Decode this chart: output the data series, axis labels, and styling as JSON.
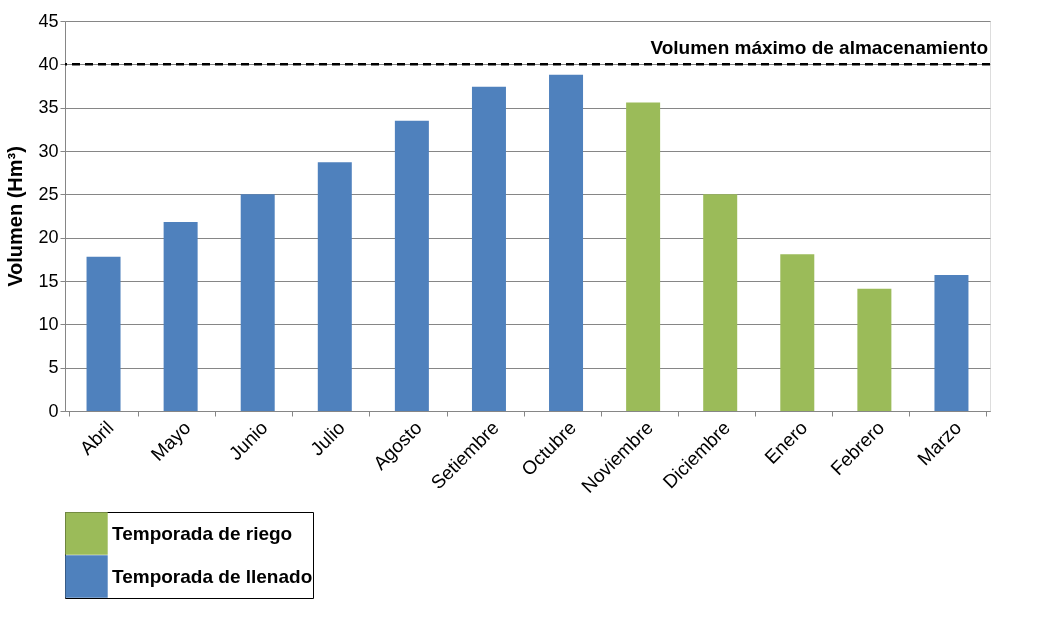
{
  "chart_data": {
    "type": "bar",
    "categories": [
      "Abril",
      "Mayo",
      "Junio",
      "Julio",
      "Agosto",
      "Setiembre",
      "Octubre",
      "Noviembre",
      "Diciembre",
      "Enero",
      "Febrero",
      "Marzo"
    ],
    "series": [
      {
        "name": "Temporada de riego",
        "color": "#9bbb59",
        "values": [
          null,
          null,
          null,
          null,
          null,
          null,
          null,
          35.6,
          25.0,
          18.1,
          14.1,
          null
        ]
      },
      {
        "name": "Temporada de llenado",
        "color": "#4f81bd",
        "values": [
          17.8,
          21.8,
          25.0,
          28.7,
          33.5,
          37.4,
          38.8,
          null,
          null,
          null,
          null,
          15.7
        ]
      }
    ],
    "ylabel": "Volumen (Hm³)",
    "ylim": [
      0,
      45
    ],
    "yticks": [
      0,
      5,
      10,
      15,
      20,
      25,
      30,
      35,
      40,
      45
    ],
    "grid": "y",
    "legend": "bottom",
    "ref_lines": [
      {
        "axis": "y",
        "value": 40,
        "label": "Volumen máximo de almacenamiento",
        "color": "#000000",
        "line_style": "dashed"
      }
    ]
  }
}
